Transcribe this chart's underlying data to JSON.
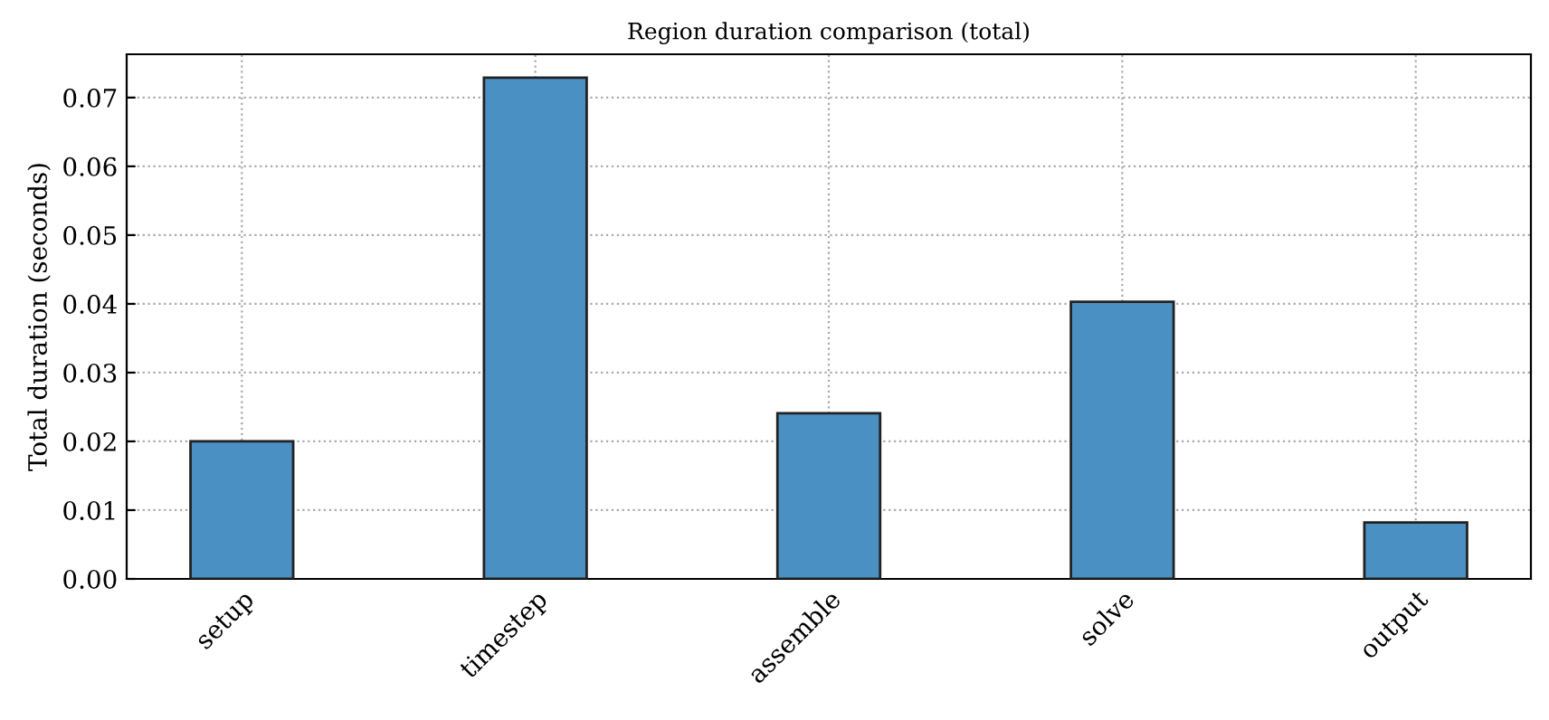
{
  "chart_data": {
    "type": "bar",
    "title": "Region duration comparison (total)",
    "ylabel": "Total duration (seconds)",
    "categories": [
      "setup",
      "timestep",
      "assemble",
      "solve",
      "output"
    ],
    "values": [
      0.02,
      0.0729,
      0.0241,
      0.0403,
      0.0082
    ],
    "color": "#4a90c2",
    "ylim": [
      0,
      0.0763
    ],
    "yticks": [
      {
        "value": 0,
        "label": "0.00"
      },
      {
        "value": 0.01,
        "label": "0.01"
      },
      {
        "value": 0.02,
        "label": "0.02"
      },
      {
        "value": 0.03,
        "label": "0.03"
      },
      {
        "value": 0.04,
        "label": "0.04"
      },
      {
        "value": 0.05,
        "label": "0.05"
      },
      {
        "value": 0.06,
        "label": "0.06"
      },
      {
        "value": 0.07,
        "label": "0.07"
      }
    ],
    "grid": true,
    "line_style": "dotted"
  }
}
